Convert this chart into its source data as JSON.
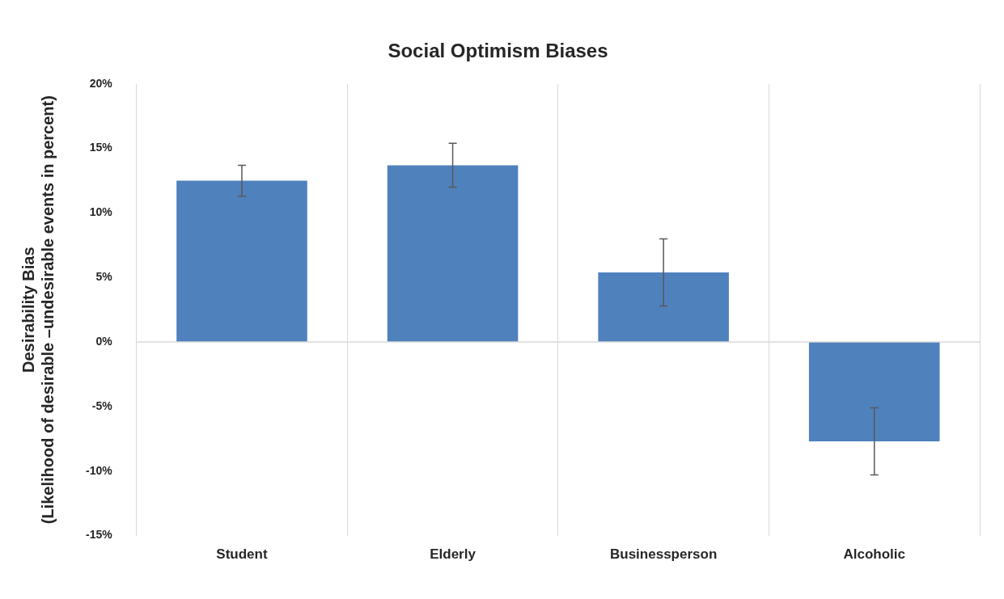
{
  "chart_data": {
    "type": "bar",
    "title": "Social Optimism Biases",
    "ylabel": "Desirability Bias\n(Likelihood of desirable –undesirable events in percent)",
    "categories": [
      "Student",
      "Elderly",
      "Businessperson",
      "Alcoholic"
    ],
    "values": [
      12.5,
      13.7,
      5.4,
      -7.7
    ],
    "errors": [
      1.2,
      1.7,
      2.6,
      2.6
    ],
    "color": "#4f81bd",
    "ylim": [
      -15,
      20
    ],
    "yticks": [
      {
        "value": -15,
        "label": "-15%"
      },
      {
        "value": -10,
        "label": "-10%"
      },
      {
        "value": -5,
        "label": "-5%"
      },
      {
        "value": 0,
        "label": "0%"
      },
      {
        "value": 5,
        "label": "5%"
      },
      {
        "value": 10,
        "label": "10%"
      },
      {
        "value": 15,
        "label": "15%"
      },
      {
        "value": 20,
        "label": "20%"
      }
    ],
    "grid": "x"
  }
}
